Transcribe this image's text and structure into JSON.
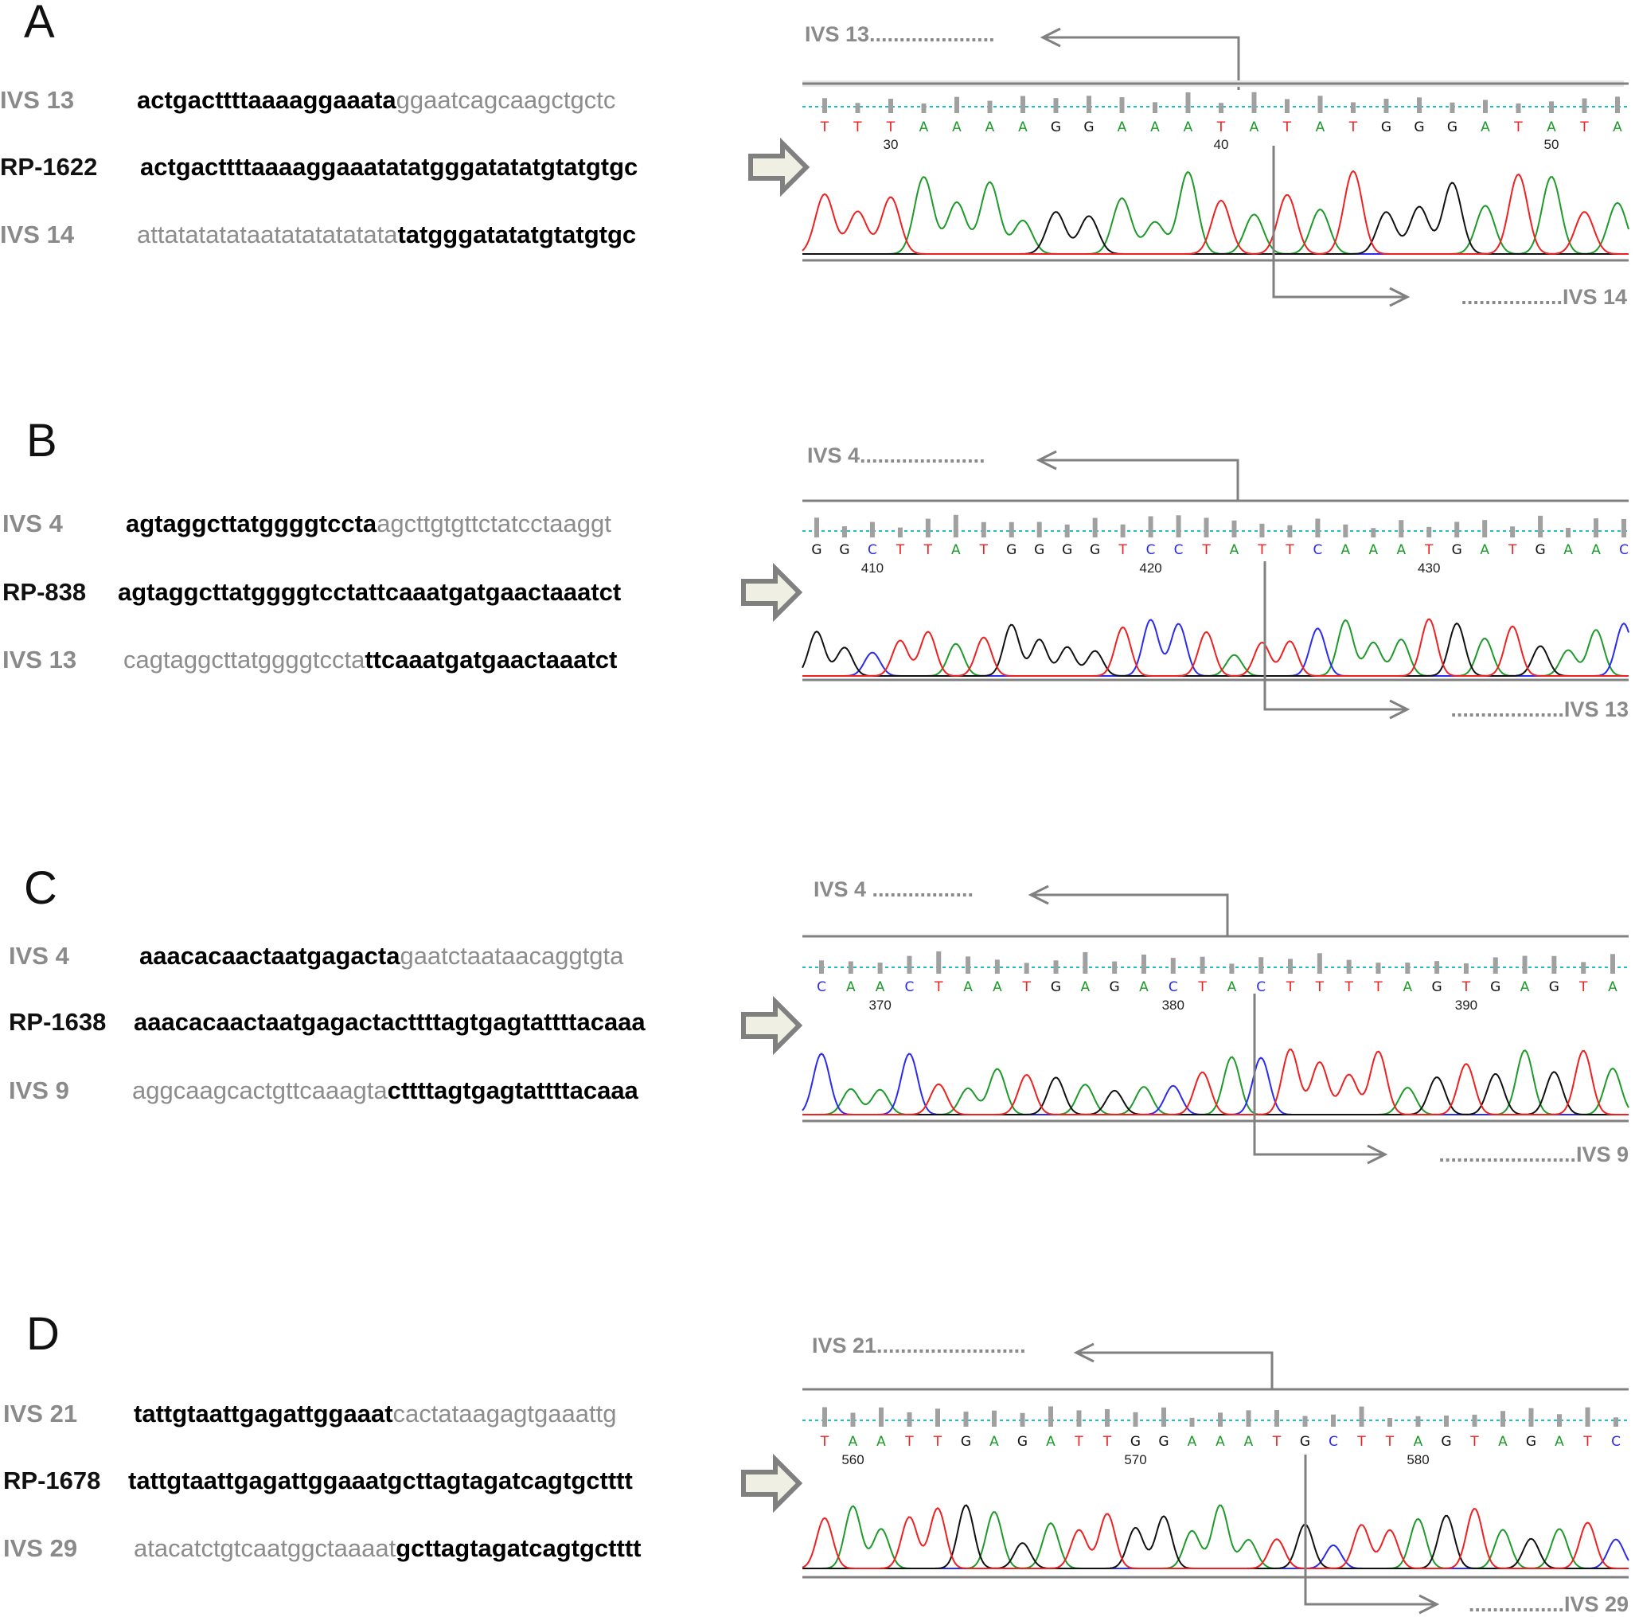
{
  "colors": {
    "A": "#1d9a2a",
    "C": "#2a2af0",
    "G": "#111111",
    "T": "#ee2020",
    "gray": "#808080",
    "guide": "#20c0c0"
  },
  "panels": [
    {
      "letter": "A",
      "rows": [
        {
          "label": "IVS 13",
          "bold_pre": "actgacttttaaaaggaaata",
          "normal": "ggaatcagcaagctgctc",
          "bold_post": ""
        },
        {
          "label": "RP-1622",
          "bold_pre": "actgacttttaaaaggaaatatatgggatatatgtatgtgc",
          "normal": "",
          "bold_post": ""
        },
        {
          "label": "IVS 14",
          "bold_pre": "",
          "normal": "attatatatataatatatatatata",
          "bold_post": "tatgggatatatgtatgtgc"
        }
      ],
      "chromatogram": {
        "upper_label": "IVS 13.....................",
        "lower_label": ".................IVS 14",
        "bases": "TTTAAAAGGAAATATATGGGATATA",
        "tick_labels": [
          "30",
          "40",
          "50"
        ]
      }
    },
    {
      "letter": "B",
      "rows": [
        {
          "label": "IVS 4",
          "bold_pre": "agtaggcttatggggtccta",
          "normal": "agcttgtgttctatcctaaggt",
          "bold_post": ""
        },
        {
          "label": "RP-838",
          "bold_pre": "agtaggcttatggggtcctattcaaatgatgaactaaatct",
          "normal": "",
          "bold_post": ""
        },
        {
          "label": "IVS 13",
          "bold_pre": "",
          "normal": "cagtaggcttatggggtccta",
          "bold_post": "ttcaaatgatgaactaaatct"
        }
      ],
      "chromatogram": {
        "upper_label": "IVS 4.....................",
        "lower_label": "...................IVS 13",
        "bases": "GGCTTATGGGGTCCTATTCAAATGATGAAC",
        "tick_labels": [
          "410",
          "420",
          "430"
        ]
      }
    },
    {
      "letter": "C",
      "rows": [
        {
          "label": "IVS 4",
          "bold_pre": "aaacacaactaatgagacta",
          "normal": "gaatctaataacaggtgta",
          "bold_post": ""
        },
        {
          "label": "RP-1638",
          "bold_pre": "aaacacaactaatgagactacttttagtgagtattttacaaa",
          "normal": "",
          "bold_post": ""
        },
        {
          "label": "IVS 9",
          "bold_pre": "",
          "normal": "aggcaagcactgttcaaagta",
          "bold_post": "cttttagtgagtattttacaaa"
        }
      ],
      "chromatogram": {
        "upper_label": "IVS 4 .................",
        "lower_label": ".......................IVS 9",
        "bases": "CAACTAATGAGACTACTTTTAGTGAGTA",
        "tick_labels": [
          "370",
          "380",
          "390"
        ]
      }
    },
    {
      "letter": "D",
      "rows": [
        {
          "label": "IVS 21",
          "bold_pre": "tattgtaattgagattggaaat",
          "normal": "cactataagagtgaaattg",
          "bold_post": ""
        },
        {
          "label": "RP-1678",
          "bold_pre": "tattgtaattgagattggaaatgcttagtagatcagtgctttt",
          "normal": "",
          "bold_post": ""
        },
        {
          "label": "IVS 29",
          "bold_pre": "",
          "normal": "atacatctgtcaatggctaaaat",
          "bold_post": "gcttagtagatcagtgctttt"
        }
      ],
      "chromatogram": {
        "upper_label": "IVS 21.........................",
        "lower_label": "................IVS 29",
        "bases": "TAATTGAGATTGGAAATGCTTAGTAGATC",
        "tick_labels": [
          "560",
          "570",
          "580"
        ]
      }
    }
  ]
}
